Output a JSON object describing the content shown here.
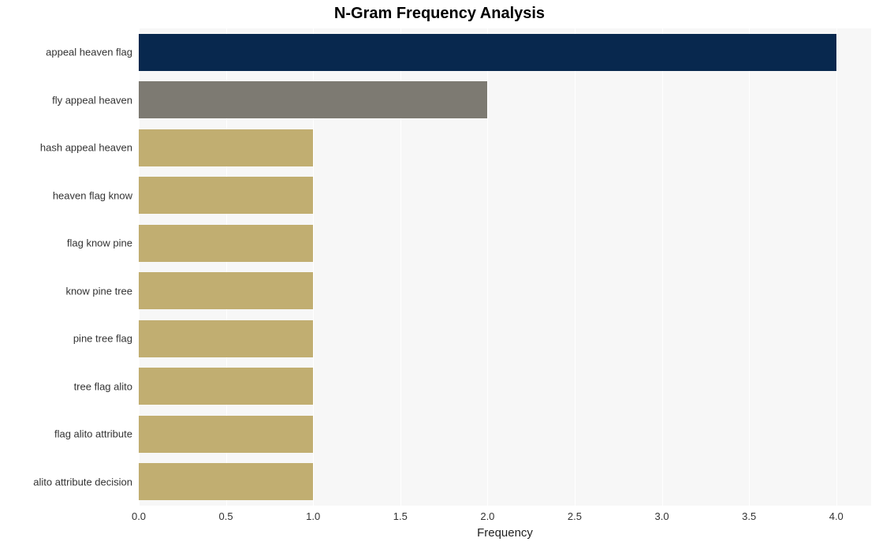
{
  "chart": {
    "type": "bar-horizontal",
    "title": "N-Gram Frequency Analysis",
    "title_fontsize": 20,
    "title_fontweight": "bold",
    "background_color": "#ffffff",
    "plot_bg_color": "#f7f7f7",
    "grid_color": "#ffffff",
    "xlabel": "Frequency",
    "xlabel_fontsize": 15,
    "tick_fontsize": 13,
    "tick_color": "#333333",
    "ylabel_fontsize": 13,
    "xlim": [
      0.0,
      4.2
    ],
    "xtick_step": 0.5,
    "xticks": [
      "0.0",
      "0.5",
      "1.0",
      "1.5",
      "2.0",
      "2.5",
      "3.0",
      "3.5",
      "4.0"
    ],
    "bar_rel_height": 0.78,
    "categories": [
      "appeal heaven flag",
      "fly appeal heaven",
      "hash appeal heaven",
      "heaven flag know",
      "flag know pine",
      "know pine tree",
      "pine tree flag",
      "tree flag alito",
      "flag alito attribute",
      "alito attribute decision"
    ],
    "values": [
      4,
      2,
      1,
      1,
      1,
      1,
      1,
      1,
      1,
      1
    ],
    "bar_colors": [
      "#08284e",
      "#7d7a72",
      "#c1ae71",
      "#c1ae71",
      "#c1ae71",
      "#c1ae71",
      "#c1ae71",
      "#c1ae71",
      "#c1ae71",
      "#c1ae71"
    ]
  }
}
